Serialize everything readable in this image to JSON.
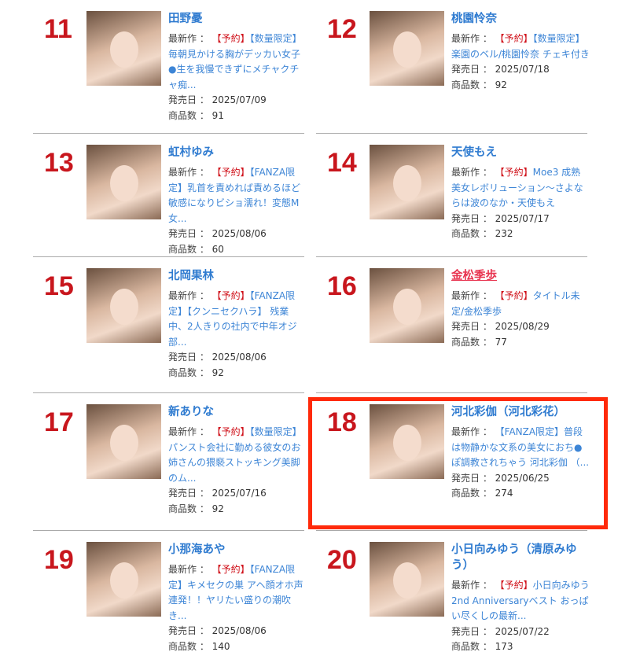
{
  "labels": {
    "latest": "最新作 ： ",
    "release": "発売日 ： ",
    "count": "商品数 ： "
  },
  "highlight_color": "#ff2a0a",
  "items": [
    {
      "rank": "11",
      "name": "田野憂",
      "reserve": "【予約】",
      "work": "【数量限定】毎朝見かける胸がデッカい女子●生を我慢できずにメチャクチャ痴...",
      "release": "2025/07/09",
      "count": "91"
    },
    {
      "rank": "12",
      "name": "桃園怜奈",
      "reserve": "【予約】",
      "work": "【数量限定】楽園のベル/桃園怜奈 チェキ付き",
      "release": "2025/07/18",
      "count": "92"
    },
    {
      "rank": "13",
      "name": "虹村ゆみ",
      "reserve": "【予約】",
      "work": "【FANZA限定】乳首を責めれば責めるほど敏感になりビショ濡れ！変態M女...",
      "release": "2025/08/06",
      "count": "60"
    },
    {
      "rank": "14",
      "name": "天使もえ",
      "reserve": "【予約】",
      "work": "Moe3 成熟美女レボリューション〜さよならは波のなか・天使もえ",
      "release": "2025/07/17",
      "count": "232"
    },
    {
      "rank": "15",
      "name": "北岡果林",
      "reserve": "【予約】",
      "work": "【FANZA限定】【クンニセクハラ】 残業中、2人きりの社内で中年オジ部...",
      "release": "2025/08/06",
      "count": "92"
    },
    {
      "rank": "16",
      "name": "金松季歩",
      "reserve": "【予約】",
      "work": "タイトル未定/金松季歩",
      "release": "2025/08/29",
      "count": "77",
      "visited": true
    },
    {
      "rank": "17",
      "name": "新ありな",
      "reserve": "【予約】",
      "work": "【数量限定】パンスト会社に勤める彼女のお姉さんの猥褻ストッキング美脚のム...",
      "release": "2025/07/16",
      "count": "92"
    },
    {
      "rank": "18",
      "name": "河北彩伽（河北彩花）",
      "reserve": "",
      "work": "【FANZA限定】普段は物静かな文系の美女におち●ぽ調教されちゃう 河北彩伽 （...",
      "release": "2025/06/25",
      "count": "274",
      "highlighted": true
    },
    {
      "rank": "19",
      "name": "小那海あや",
      "reserve": "【予約】",
      "work": "【FANZA限定】キメセクの巣 アヘ顔オホ声連発！！ヤリたい盛りの潮吹き...",
      "release": "2025/08/06",
      "count": "140"
    },
    {
      "rank": "20",
      "name": "小日向みゆう（清原みゆう）",
      "reserve": "【予約】",
      "work": "小日向みゆう 2nd Anniversaryベスト おっぱい尽くしの最新...",
      "release": "2025/07/22",
      "count": "173"
    }
  ]
}
